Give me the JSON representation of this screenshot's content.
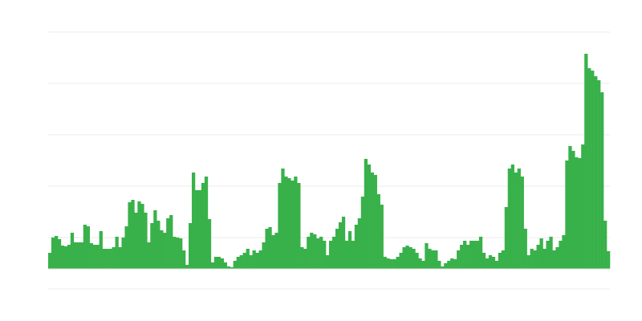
{
  "chart_data": {
    "type": "bar",
    "title": "",
    "xlabel": "",
    "ylabel": "",
    "ylim": [
      -25,
      295
    ],
    "grid": true,
    "grid_step": 64,
    "bar_color": "#39b14a",
    "grid_color": "#ebebeb",
    "values": [
      20,
      39,
      41,
      37,
      29,
      28,
      30,
      45,
      33,
      33,
      33,
      55,
      53,
      32,
      30,
      30,
      47,
      25,
      25,
      25,
      27,
      40,
      27,
      39,
      53,
      83,
      86,
      70,
      84,
      81,
      70,
      33,
      57,
      73,
      60,
      48,
      45,
      63,
      67,
      40,
      39,
      38,
      23,
      5,
      57,
      120,
      98,
      98,
      107,
      115,
      62,
      8,
      15,
      15,
      13,
      8,
      3,
      2,
      10,
      15,
      17,
      20,
      25,
      17,
      23,
      20,
      23,
      33,
      50,
      52,
      42,
      45,
      107,
      125,
      115,
      113,
      110,
      115,
      107,
      27,
      25,
      40,
      45,
      43,
      38,
      40,
      35,
      17,
      35,
      40,
      50,
      58,
      65,
      35,
      47,
      35,
      55,
      63,
      90,
      137,
      130,
      120,
      117,
      93,
      80,
      15,
      13,
      12,
      12,
      15,
      20,
      27,
      29,
      27,
      25,
      20,
      13,
      10,
      32,
      25,
      23,
      23,
      10,
      3,
      7,
      10,
      13,
      12,
      23,
      30,
      35,
      30,
      35,
      35,
      35,
      40,
      20,
      13,
      17,
      15,
      10,
      20,
      23,
      77,
      125,
      130,
      120,
      125,
      115,
      50,
      17,
      25,
      23,
      30,
      38,
      25,
      35,
      40,
      23,
      27,
      35,
      42,
      135,
      153,
      147,
      139,
      138,
      155,
      268,
      250,
      247,
      240,
      235,
      220,
      60,
      22
    ]
  }
}
